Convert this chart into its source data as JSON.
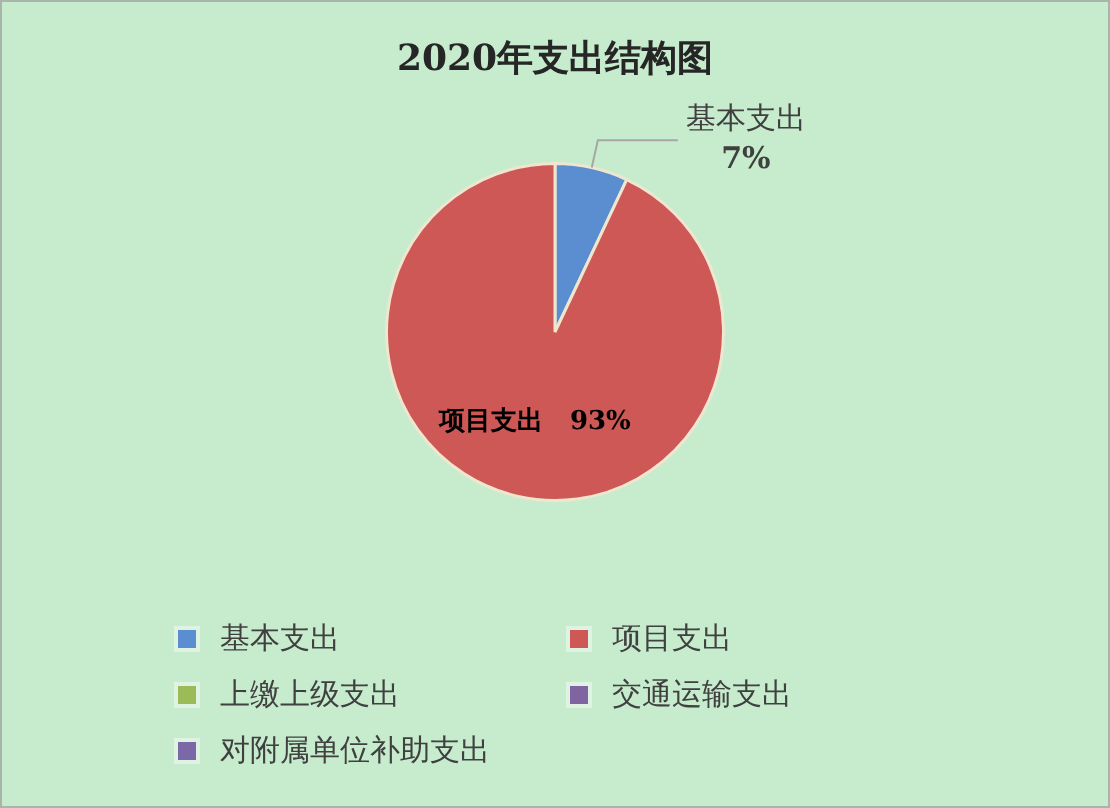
{
  "chart_data": {
    "type": "pie",
    "title": "2020年支出结构图",
    "categories": [
      "基本支出",
      "项目支出",
      "上缴上级支出",
      "交通运输支出",
      "对附属单位补助支出"
    ],
    "values": [
      7,
      93,
      0,
      0,
      0
    ],
    "value_labels": [
      "7%",
      "93%",
      null,
      null,
      null
    ],
    "colors": [
      "#5b8ed1",
      "#cd5855",
      "#9bbb59",
      "#8064a2",
      "#7b68a6"
    ],
    "legend": "bottom"
  }
}
